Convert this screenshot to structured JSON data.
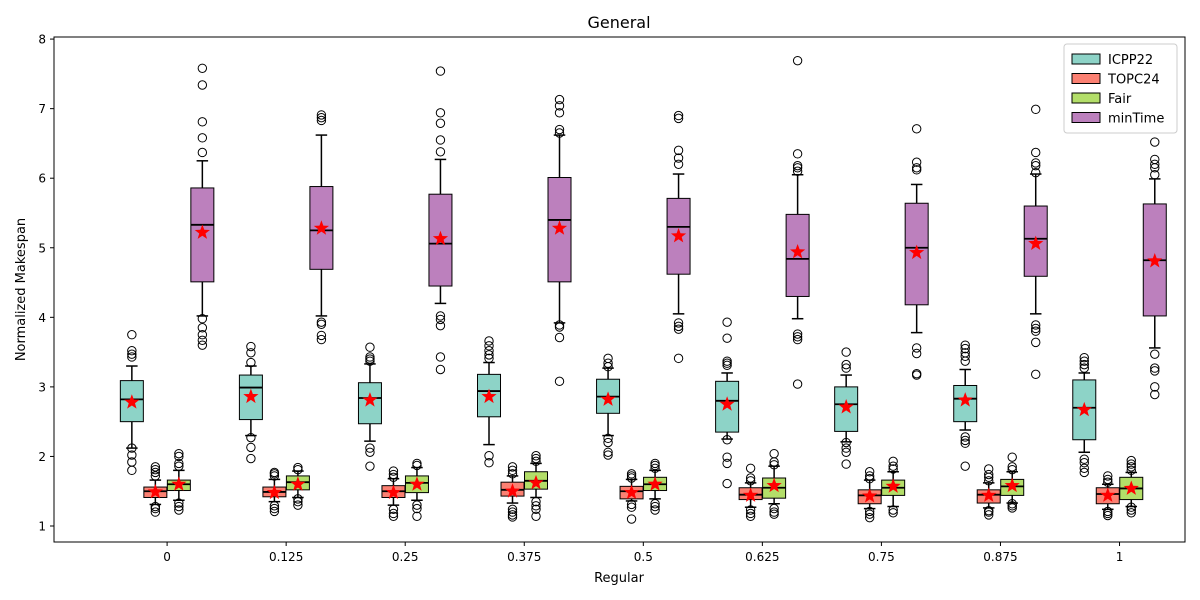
{
  "chart_data": {
    "type": "box",
    "title": "General",
    "xlabel": "Regular",
    "ylabel": "Normalized Makespan",
    "ylim": [
      0.77,
      8.03
    ],
    "yticks": [
      1,
      2,
      3,
      4,
      5,
      6,
      7,
      8
    ],
    "categories": [
      "0",
      "0.125",
      "0.25",
      "0.375",
      "0.5",
      "0.625",
      "0.75",
      "0.875",
      "1"
    ],
    "legend_position": "top-right",
    "grid": false,
    "series": [
      {
        "name": "ICPP22",
        "color": "#8dd3c7",
        "boxes": [
          {
            "whislo": 2.12,
            "q1": 2.5,
            "med": 2.82,
            "q3": 3.09,
            "whishi": 3.3,
            "mean": 2.78,
            "fliers": [
              1.8,
              1.92,
              2.02,
              2.12,
              3.43,
              3.47,
              3.52,
              3.75
            ]
          },
          {
            "whislo": 2.3,
            "q1": 2.53,
            "med": 2.99,
            "q3": 3.17,
            "whishi": 3.3,
            "mean": 2.86,
            "fliers": [
              1.97,
              2.13,
              2.27,
              3.35,
              3.49,
              3.58
            ]
          },
          {
            "whislo": 2.22,
            "q1": 2.47,
            "med": 2.84,
            "q3": 3.06,
            "whishi": 3.33,
            "mean": 2.81,
            "fliers": [
              1.86,
              2.06,
              2.12,
              3.37,
              3.4,
              3.43,
              3.57
            ]
          },
          {
            "whislo": 2.17,
            "q1": 2.57,
            "med": 2.94,
            "q3": 3.18,
            "whishi": 3.35,
            "mean": 2.86,
            "fliers": [
              1.91,
              2.01,
              3.41,
              3.46,
              3.52,
              3.59,
              3.66
            ]
          },
          {
            "whislo": 2.3,
            "q1": 2.62,
            "med": 2.86,
            "q3": 3.11,
            "whishi": 3.27,
            "mean": 2.82,
            "fliers": [
              2.02,
              2.06,
              2.2,
              2.26,
              3.29,
              3.34,
              3.41
            ]
          },
          {
            "whislo": 2.25,
            "q1": 2.35,
            "med": 2.8,
            "q3": 3.08,
            "whishi": 3.2,
            "mean": 2.75,
            "fliers": [
              1.61,
              1.9,
              1.99,
              2.24,
              3.31,
              3.34,
              3.37,
              3.7,
              3.93
            ]
          },
          {
            "whislo": 2.21,
            "q1": 2.36,
            "med": 2.75,
            "q3": 3.0,
            "whishi": 3.17,
            "mean": 2.71,
            "fliers": [
              1.89,
              2.06,
              2.12,
              2.2,
              3.27,
              3.32,
              3.5
            ]
          },
          {
            "whislo": 2.38,
            "q1": 2.5,
            "med": 2.83,
            "q3": 3.02,
            "whishi": 3.25,
            "mean": 2.81,
            "fliers": [
              1.86,
              2.19,
              2.23,
              2.28,
              3.37,
              3.44,
              3.49,
              3.55,
              3.6
            ]
          },
          {
            "whislo": 2.06,
            "q1": 2.24,
            "med": 2.7,
            "q3": 3.1,
            "whishi": 3.2,
            "mean": 2.67,
            "fliers": [
              1.77,
              1.83,
              1.91,
              1.96,
              3.27,
              3.32,
              3.37,
              3.42
            ]
          }
        ]
      },
      {
        "name": "TOPC24",
        "color": "#fb8072",
        "boxes": [
          {
            "whislo": 1.31,
            "q1": 1.41,
            "med": 1.5,
            "q3": 1.56,
            "whishi": 1.66,
            "mean": 1.49,
            "fliers": [
              1.2,
              1.25,
              1.28,
              1.72,
              1.77,
              1.81,
              1.85
            ]
          },
          {
            "whislo": 1.35,
            "q1": 1.42,
            "med": 1.49,
            "q3": 1.56,
            "whishi": 1.67,
            "mean": 1.48,
            "fliers": [
              1.21,
              1.25,
              1.29,
              1.72,
              1.75,
              1.77
            ]
          },
          {
            "whislo": 1.3,
            "q1": 1.41,
            "med": 1.5,
            "q3": 1.58,
            "whishi": 1.68,
            "mean": 1.48,
            "fliers": [
              1.14,
              1.18,
              1.24,
              1.7,
              1.74,
              1.79
            ]
          },
          {
            "whislo": 1.33,
            "q1": 1.43,
            "med": 1.52,
            "q3": 1.63,
            "whishi": 1.72,
            "mean": 1.5,
            "fliers": [
              1.13,
              1.16,
              1.2,
              1.24,
              1.75,
              1.8,
              1.85
            ]
          },
          {
            "whislo": 1.36,
            "q1": 1.39,
            "med": 1.5,
            "q3": 1.57,
            "whishi": 1.67,
            "mean": 1.48,
            "fliers": [
              1.1,
              1.27,
              1.31,
              1.69,
              1.72,
              1.75
            ]
          },
          {
            "whislo": 1.27,
            "q1": 1.38,
            "med": 1.45,
            "q3": 1.55,
            "whishi": 1.62,
            "mean": 1.44,
            "fliers": [
              1.14,
              1.18,
              1.23,
              1.65,
              1.69,
              1.83
            ]
          },
          {
            "whislo": 1.25,
            "q1": 1.32,
            "med": 1.44,
            "q3": 1.52,
            "whishi": 1.66,
            "mean": 1.43,
            "fliers": [
              1.12,
              1.17,
              1.21,
              1.68,
              1.72,
              1.78
            ]
          },
          {
            "whislo": 1.26,
            "q1": 1.33,
            "med": 1.45,
            "q3": 1.52,
            "whishi": 1.62,
            "mean": 1.44,
            "fliers": [
              1.16,
              1.2,
              1.22,
              1.65,
              1.7,
              1.74,
              1.82
            ]
          },
          {
            "whislo": 1.24,
            "q1": 1.32,
            "med": 1.46,
            "q3": 1.55,
            "whishi": 1.6,
            "mean": 1.44,
            "fliers": [
              1.15,
              1.18,
              1.21,
              1.63,
              1.67,
              1.72
            ]
          }
        ]
      },
      {
        "name": "Fair",
        "color": "#b3de69",
        "boxes": [
          {
            "whislo": 1.37,
            "q1": 1.51,
            "med": 1.6,
            "q3": 1.66,
            "whishi": 1.8,
            "mean": 1.6,
            "fliers": [
              1.23,
              1.28,
              1.33,
              1.86,
              1.9,
              2.0,
              2.04
            ]
          },
          {
            "whislo": 1.41,
            "q1": 1.52,
            "med": 1.63,
            "q3": 1.72,
            "whishi": 1.79,
            "mean": 1.6,
            "fliers": [
              1.3,
              1.35,
              1.39,
              1.81,
              1.84
            ]
          },
          {
            "whislo": 1.37,
            "q1": 1.48,
            "med": 1.62,
            "q3": 1.72,
            "whishi": 1.84,
            "mean": 1.6,
            "fliers": [
              1.14,
              1.25,
              1.3,
              1.87,
              1.9
            ]
          },
          {
            "whislo": 1.41,
            "q1": 1.53,
            "med": 1.65,
            "q3": 1.78,
            "whishi": 1.9,
            "mean": 1.62,
            "fliers": [
              1.14,
              1.24,
              1.29,
              1.35,
              1.93,
              1.97,
              2.01
            ]
          },
          {
            "whislo": 1.39,
            "q1": 1.51,
            "med": 1.6,
            "q3": 1.7,
            "whishi": 1.8,
            "mean": 1.6,
            "fliers": [
              1.23,
              1.28,
              1.32,
              1.83,
              1.87,
              1.9
            ]
          },
          {
            "whislo": 1.32,
            "q1": 1.4,
            "med": 1.55,
            "q3": 1.69,
            "whishi": 1.86,
            "mean": 1.58,
            "fliers": [
              1.17,
              1.2,
              1.25,
              1.88,
              1.92,
              2.04
            ]
          },
          {
            "whislo": 1.28,
            "q1": 1.44,
            "med": 1.55,
            "q3": 1.66,
            "whishi": 1.78,
            "mean": 1.57,
            "fliers": [
              1.19,
              1.23,
              1.82,
              1.86,
              1.93
            ]
          },
          {
            "whislo": 1.33,
            "q1": 1.44,
            "med": 1.57,
            "q3": 1.67,
            "whishi": 1.78,
            "mean": 1.58,
            "fliers": [
              1.26,
              1.29,
              1.32,
              1.81,
              1.85,
              1.99
            ]
          },
          {
            "whislo": 1.28,
            "q1": 1.38,
            "med": 1.54,
            "q3": 1.7,
            "whishi": 1.77,
            "mean": 1.54,
            "fliers": [
              1.19,
              1.23,
              1.27,
              1.8,
              1.85,
              1.89,
              1.94
            ]
          }
        ]
      },
      {
        "name": "minTime",
        "color": "#bc80bd",
        "boxes": [
          {
            "whislo": 4.02,
            "q1": 4.51,
            "med": 5.33,
            "q3": 5.86,
            "whishi": 6.25,
            "mean": 5.22,
            "fliers": [
              3.6,
              3.67,
              3.75,
              3.85,
              3.98,
              6.37,
              6.58,
              6.81,
              7.34,
              7.58
            ]
          },
          {
            "whislo": 4.02,
            "q1": 4.69,
            "med": 5.25,
            "q3": 5.88,
            "whishi": 6.62,
            "mean": 5.28,
            "fliers": [
              3.68,
              3.74,
              3.9,
              3.93,
              6.83,
              6.87,
              6.91
            ]
          },
          {
            "whislo": 4.2,
            "q1": 4.45,
            "med": 5.06,
            "q3": 5.77,
            "whishi": 6.27,
            "mean": 5.13,
            "fliers": [
              3.25,
              3.43,
              3.88,
              3.97,
              4.02,
              6.38,
              6.55,
              6.79,
              6.94,
              7.54
            ]
          },
          {
            "whislo": 3.92,
            "q1": 4.51,
            "med": 5.4,
            "q3": 6.01,
            "whishi": 6.62,
            "mean": 5.28,
            "fliers": [
              3.08,
              3.71,
              3.86,
              3.89,
              6.65,
              6.7,
              6.94,
              7.04,
              7.13
            ]
          },
          {
            "whislo": 4.05,
            "q1": 4.62,
            "med": 5.3,
            "q3": 5.71,
            "whishi": 6.06,
            "mean": 5.17,
            "fliers": [
              3.41,
              3.83,
              3.87,
              3.92,
              6.2,
              6.29,
              6.4,
              6.86,
              6.9
            ]
          },
          {
            "whislo": 3.98,
            "q1": 4.3,
            "med": 4.84,
            "q3": 5.48,
            "whishi": 6.05,
            "mean": 4.94,
            "fliers": [
              3.04,
              3.68,
              3.72,
              3.76,
              6.1,
              6.15,
              6.18,
              6.35,
              7.69
            ]
          },
          {
            "whislo": 3.78,
            "q1": 4.18,
            "med": 5.0,
            "q3": 5.64,
            "whishi": 5.91,
            "mean": 4.93,
            "fliers": [
              3.17,
              3.19,
              3.48,
              3.56,
              6.12,
              6.15,
              6.23,
              6.71
            ]
          },
          {
            "whislo": 4.05,
            "q1": 4.59,
            "med": 5.13,
            "q3": 5.6,
            "whishi": 6.06,
            "mean": 5.06,
            "fliers": [
              3.18,
              3.64,
              3.8,
              3.84,
              3.89,
              6.08,
              6.18,
              6.22,
              6.37,
              6.99
            ]
          },
          {
            "whislo": 3.56,
            "q1": 4.02,
            "med": 4.82,
            "q3": 5.63,
            "whishi": 5.99,
            "mean": 4.81,
            "fliers": [
              2.89,
              3.0,
              3.23,
              3.27,
              3.47,
              6.05,
              6.15,
              6.2,
              6.27,
              6.52
            ]
          }
        ]
      }
    ]
  }
}
